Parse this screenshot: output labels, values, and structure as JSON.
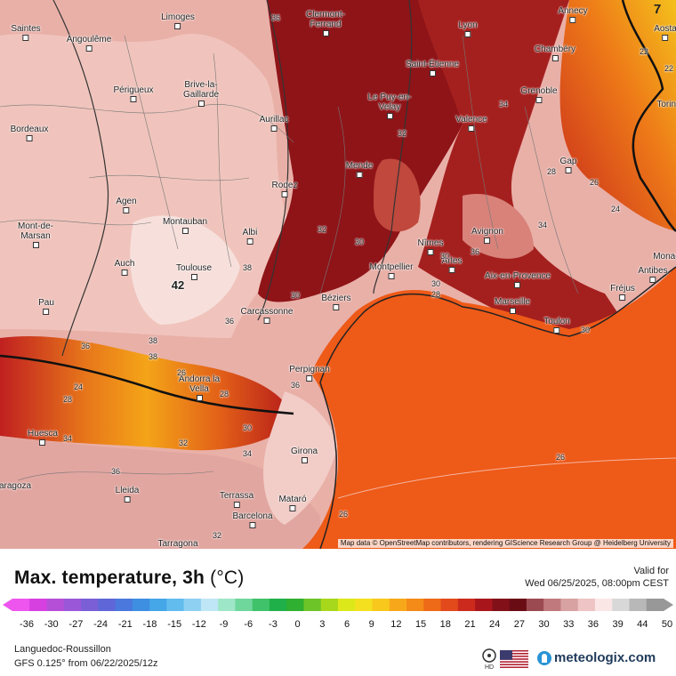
{
  "map": {
    "cities": [
      {
        "name": "Limoges",
        "icon": "city-marker-icon"
      },
      {
        "name": "Clermont-Ferrand",
        "icon": "city-marker-icon"
      },
      {
        "name": "Annecy",
        "icon": "city-marker-icon"
      },
      {
        "name": "Saintes",
        "icon": "city-marker-icon"
      },
      {
        "name": "Angoulême",
        "icon": "city-marker-icon"
      },
      {
        "name": "Lyon",
        "icon": "city-marker-icon"
      },
      {
        "name": "Aosta",
        "icon": "city-marker-icon"
      },
      {
        "name": "Chambéry",
        "icon": "city-marker-icon"
      },
      {
        "name": "Saint-Étienne",
        "icon": "city-marker-icon"
      },
      {
        "name": "Périgueux",
        "icon": "city-marker-icon"
      },
      {
        "name": "Brive-la-Gaillarde",
        "icon": "city-marker-icon"
      },
      {
        "name": "Grenoble",
        "icon": "city-marker-icon"
      },
      {
        "name": "Le Puy-en-Velay",
        "icon": "city-marker-icon"
      },
      {
        "name": "Torino",
        "icon": "city-marker-icon"
      },
      {
        "name": "Bordeaux",
        "icon": "city-marker-icon"
      },
      {
        "name": "Aurillac",
        "icon": "city-marker-icon"
      },
      {
        "name": "Valence",
        "icon": "city-marker-icon"
      },
      {
        "name": "Mende",
        "icon": "city-marker-icon"
      },
      {
        "name": "Gap",
        "icon": "city-marker-icon"
      },
      {
        "name": "Rodez",
        "icon": "city-marker-icon"
      },
      {
        "name": "Agen",
        "icon": "city-marker-icon"
      },
      {
        "name": "Montauban",
        "icon": "city-marker-icon"
      },
      {
        "name": "Mont-de-Marsan",
        "icon": "city-marker-icon"
      },
      {
        "name": "Albi",
        "icon": "city-marker-icon"
      },
      {
        "name": "Avignon",
        "icon": "city-marker-icon"
      },
      {
        "name": "Nîmes",
        "icon": "city-marker-icon"
      },
      {
        "name": "Monaco",
        "icon": "city-marker-icon"
      },
      {
        "name": "Auch",
        "icon": "city-marker-icon"
      },
      {
        "name": "Toulouse",
        "icon": "city-marker-icon"
      },
      {
        "name": "Montpellier",
        "icon": "city-marker-icon"
      },
      {
        "name": "Arles",
        "icon": "city-marker-icon"
      },
      {
        "name": "Antibes",
        "icon": "city-marker-icon"
      },
      {
        "name": "Aix-en-Provence",
        "icon": "city-marker-icon"
      },
      {
        "name": "Fréjus",
        "icon": "city-marker-icon"
      },
      {
        "name": "Pau",
        "icon": "city-marker-icon"
      },
      {
        "name": "Béziers",
        "icon": "city-marker-icon"
      },
      {
        "name": "Carcassonne",
        "icon": "city-marker-icon"
      },
      {
        "name": "Marseille",
        "icon": "city-marker-icon"
      },
      {
        "name": "Toulon",
        "icon": "city-marker-icon"
      },
      {
        "name": "Perpignan",
        "icon": "city-marker-icon"
      },
      {
        "name": "Andorra la Vella",
        "icon": "city-marker-icon"
      },
      {
        "name": "Huesca",
        "icon": "city-marker-icon"
      },
      {
        "name": "Girona",
        "icon": "city-marker-icon"
      },
      {
        "name": "Zaragoza",
        "icon": "city-marker-icon"
      },
      {
        "name": "Lleida",
        "icon": "city-marker-icon"
      },
      {
        "name": "Terrassa",
        "icon": "city-marker-icon"
      },
      {
        "name": "Mataró",
        "icon": "city-marker-icon"
      },
      {
        "name": "Barcelona",
        "icon": "city-marker-icon"
      },
      {
        "name": "Tarragona",
        "icon": "city-marker-icon"
      }
    ],
    "contour_labels": [
      "36",
      "34",
      "38",
      "32",
      "30",
      "28",
      "36",
      "34",
      "26",
      "24",
      "22",
      "22",
      "38",
      "36",
      "30",
      "32",
      "30",
      "30",
      "28",
      "36",
      "38",
      "26",
      "24",
      "28",
      "30",
      "36",
      "34",
      "36",
      "28",
      "32",
      "26",
      "26",
      "34",
      "32",
      "30"
    ],
    "max_marker": "42",
    "corner_badge": "7",
    "attribution": "Map data © OpenStreetMap contributors, rendering GIScience Research Group @ Heidelberg University"
  },
  "header": {
    "title": "Max. temperature, 3h",
    "unit": "(°C)",
    "valid_label": "Valid for",
    "valid_datetime": "Wed 06/25/2025, 08:00pm CEST"
  },
  "scale": {
    "ticks": [
      "-36",
      "-30",
      "-27",
      "-24",
      "-21",
      "-18",
      "-15",
      "-12",
      "-9",
      "-6",
      "-3",
      "0",
      "3",
      "6",
      "9",
      "12",
      "15",
      "18",
      "21",
      "24",
      "27",
      "30",
      "33",
      "36",
      "39",
      "44",
      "50"
    ],
    "colors": [
      "#ee55ee",
      "#d63fe0",
      "#b64fd8",
      "#9a58d8",
      "#7a5fd6",
      "#5f66d8",
      "#4a78dc",
      "#3e8ee2",
      "#45a6e8",
      "#62bcee",
      "#8ed0f2",
      "#bfe6f6",
      "#9ee6c8",
      "#6fd69c",
      "#40c26a",
      "#20b04a",
      "#30b030",
      "#6cc428",
      "#a8d81c",
      "#dde81a",
      "#f5e020",
      "#f8c81c",
      "#f7a81a",
      "#f48a18",
      "#ee6a18",
      "#e24a1c",
      "#cc2a1c",
      "#a8161c",
      "#821018",
      "#6a0c14",
      "#9c4a52",
      "#c07a7e",
      "#d8a2a2",
      "#eec4c4",
      "#fbe6e6",
      "#d8d8d8",
      "#b8b8b8",
      "#989898"
    ]
  },
  "footer": {
    "region": "Languedoc-Roussillon",
    "model": "GFS 0.125° from  06/22/2025/12z",
    "hd_label": "HD",
    "brand": "meteologix.com"
  }
}
